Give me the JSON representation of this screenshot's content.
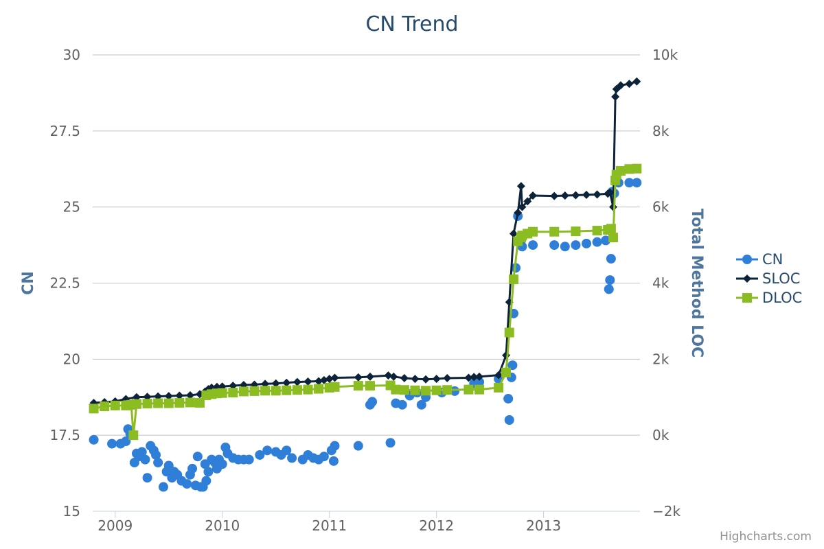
{
  "chart_data": {
    "type": "line",
    "title": "CN Trend",
    "credits": "Highcharts.com",
    "x_ticks": [
      "2009",
      "2010",
      "2011",
      "2012",
      "2013"
    ],
    "x_tick_values": [
      2009.0,
      2010.0,
      2011.0,
      2012.0,
      2013.0
    ],
    "xlim": [
      2008.79,
      2013.9
    ],
    "y_left": {
      "label": "CN",
      "ticks": [
        "15",
        "17.5",
        "20",
        "22.5",
        "25",
        "27.5",
        "30"
      ],
      "lim": [
        15,
        30
      ]
    },
    "y_right": {
      "label": "Total Method LOC",
      "ticks": [
        "−2k",
        "0k",
        "2k",
        "4k",
        "6k",
        "8k",
        "10k"
      ],
      "lim": [
        -2000,
        10000
      ]
    },
    "grid": true,
    "legend_position": "right",
    "colors": {
      "CN": "#2f7ed8",
      "SLOC": "#0d233a",
      "DLOC": "#8bbc21",
      "grid": "#c0c0c0",
      "title": "#274b6d",
      "axis_label": "#4d759e"
    },
    "series": [
      {
        "name": "CN",
        "axis": "left",
        "marker": "circle",
        "line": false,
        "x": [
          2008.8,
          2008.97,
          2009.05,
          2009.1,
          2009.12,
          2009.14,
          2009.18,
          2009.2,
          2009.22,
          2009.25,
          2009.28,
          2009.3,
          2009.33,
          2009.36,
          2009.38,
          2009.4,
          2009.45,
          2009.48,
          2009.5,
          2009.53,
          2009.55,
          2009.58,
          2009.62,
          2009.67,
          2009.7,
          2009.72,
          2009.75,
          2009.77,
          2009.8,
          2009.82,
          2009.84,
          2009.85,
          2009.87,
          2009.9,
          2009.93,
          2009.95,
          2009.97,
          2010.0,
          2010.03,
          2010.05,
          2010.1,
          2010.15,
          2010.2,
          2010.25,
          2010.35,
          2010.42,
          2010.5,
          2010.55,
          2010.6,
          2010.65,
          2010.75,
          2010.8,
          2010.85,
          2010.9,
          2010.95,
          2011.02,
          2011.04,
          2011.05,
          2011.27,
          2011.38,
          2011.4,
          2011.57,
          2011.62,
          2011.68,
          2011.75,
          2011.82,
          2011.86,
          2011.9,
          2012.05,
          2012.17,
          2012.3,
          2012.35,
          2012.4,
          2012.58,
          2012.67,
          2012.68,
          2012.7,
          2012.71,
          2012.72,
          2012.74,
          2012.76,
          2012.79,
          2012.8,
          2012.9,
          2013.1,
          2013.2,
          2013.3,
          2013.4,
          2013.5,
          2013.58,
          2013.61,
          2013.62,
          2013.63,
          2013.64,
          2013.66,
          2013.7,
          2013.8,
          2013.87
        ],
        "y": [
          17.35,
          17.22,
          17.22,
          17.3,
          17.7,
          17.55,
          16.6,
          16.9,
          16.8,
          16.95,
          16.7,
          16.1,
          17.15,
          17.0,
          16.85,
          16.6,
          15.8,
          16.3,
          16.5,
          16.1,
          16.3,
          16.2,
          16.0,
          15.9,
          16.2,
          16.4,
          15.85,
          16.8,
          15.8,
          15.8,
          16.55,
          16.0,
          16.3,
          16.7,
          16.6,
          16.4,
          16.7,
          16.55,
          17.1,
          16.9,
          16.75,
          16.7,
          16.7,
          16.7,
          16.85,
          17.0,
          16.95,
          16.85,
          17.0,
          16.75,
          16.7,
          16.85,
          16.75,
          16.7,
          16.8,
          17.0,
          16.65,
          17.15,
          17.15,
          18.5,
          18.6,
          17.25,
          18.55,
          18.5,
          18.8,
          18.9,
          18.5,
          18.75,
          18.9,
          18.95,
          19.0,
          19.2,
          19.25,
          19.35,
          18.7,
          18.0,
          19.4,
          19.8,
          21.5,
          23.0,
          24.7,
          23.9,
          23.7,
          23.75,
          23.75,
          23.7,
          23.75,
          23.8,
          23.85,
          23.9,
          22.3,
          22.6,
          23.3,
          25.5,
          25.45,
          25.8,
          25.8,
          25.8
        ]
      },
      {
        "name": "SLOC",
        "axis": "right",
        "marker": "diamond",
        "line": true,
        "x": [
          2008.8,
          2008.9,
          2009.0,
          2009.1,
          2009.2,
          2009.3,
          2009.4,
          2009.5,
          2009.6,
          2009.7,
          2009.79,
          2009.84,
          2009.87,
          2009.9,
          2009.95,
          2010.0,
          2010.1,
          2010.2,
          2010.3,
          2010.4,
          2010.5,
          2010.6,
          2010.7,
          2010.8,
          2010.9,
          2010.95,
          2011.0,
          2011.05,
          2011.27,
          2011.38,
          2011.55,
          2011.6,
          2011.7,
          2011.8,
          2011.9,
          2012.0,
          2012.1,
          2012.3,
          2012.35,
          2012.4,
          2012.58,
          2012.65,
          2012.68,
          2012.72,
          2012.76,
          2012.79,
          2012.8,
          2012.85,
          2012.9,
          2013.1,
          2013.2,
          2013.3,
          2013.4,
          2013.5,
          2013.6,
          2013.62,
          2013.65,
          2013.67,
          2013.68,
          2013.72,
          2013.8,
          2013.87
        ],
        "y": [
          850,
          870,
          890,
          950,
          1000,
          1010,
          1020,
          1030,
          1040,
          1050,
          1080,
          1150,
          1210,
          1250,
          1270,
          1280,
          1300,
          1320,
          1330,
          1350,
          1360,
          1380,
          1400,
          1410,
          1420,
          1450,
          1480,
          1510,
          1520,
          1540,
          1570,
          1540,
          1500,
          1480,
          1470,
          1480,
          1500,
          1510,
          1530,
          1540,
          1580,
          2100,
          3500,
          5300,
          5850,
          6550,
          6000,
          6150,
          6300,
          6290,
          6300,
          6310,
          6320,
          6330,
          6350,
          6380,
          6000,
          8900,
          9100,
          9200,
          9240,
          9300
        ]
      },
      {
        "name": "DLOC",
        "axis": "right",
        "marker": "square",
        "line": true,
        "x": [
          2008.8,
          2008.9,
          2009.0,
          2009.1,
          2009.12,
          2009.15,
          2009.17,
          2009.2,
          2009.3,
          2009.4,
          2009.5,
          2009.6,
          2009.7,
          2009.79,
          2009.85,
          2009.9,
          2009.95,
          2010.0,
          2010.1,
          2010.2,
          2010.3,
          2010.4,
          2010.5,
          2010.6,
          2010.7,
          2010.8,
          2010.9,
          2011.0,
          2011.05,
          2011.27,
          2011.38,
          2011.57,
          2011.62,
          2011.7,
          2011.8,
          2011.9,
          2012.0,
          2012.1,
          2012.3,
          2012.4,
          2012.58,
          2012.65,
          2012.68,
          2012.72,
          2012.76,
          2012.79,
          2012.8,
          2012.85,
          2012.9,
          2013.1,
          2013.3,
          2013.5,
          2013.6,
          2013.63,
          2013.65,
          2013.67,
          2013.68,
          2013.72,
          2013.8,
          2013.87
        ],
        "y": [
          700,
          760,
          780,
          780,
          790,
          800,
          0,
          820,
          830,
          840,
          840,
          850,
          860,
          850,
          1050,
          1080,
          1100,
          1110,
          1120,
          1150,
          1160,
          1170,
          1170,
          1180,
          1190,
          1200,
          1220,
          1250,
          1270,
          1300,
          1300,
          1310,
          1200,
          1190,
          1180,
          1170,
          1180,
          1190,
          1200,
          1200,
          1250,
          1650,
          2700,
          4100,
          5100,
          5200,
          5250,
          5300,
          5350,
          5350,
          5360,
          5380,
          5400,
          5430,
          5200,
          6700,
          6850,
          6950,
          7000,
          7010
        ]
      }
    ]
  }
}
